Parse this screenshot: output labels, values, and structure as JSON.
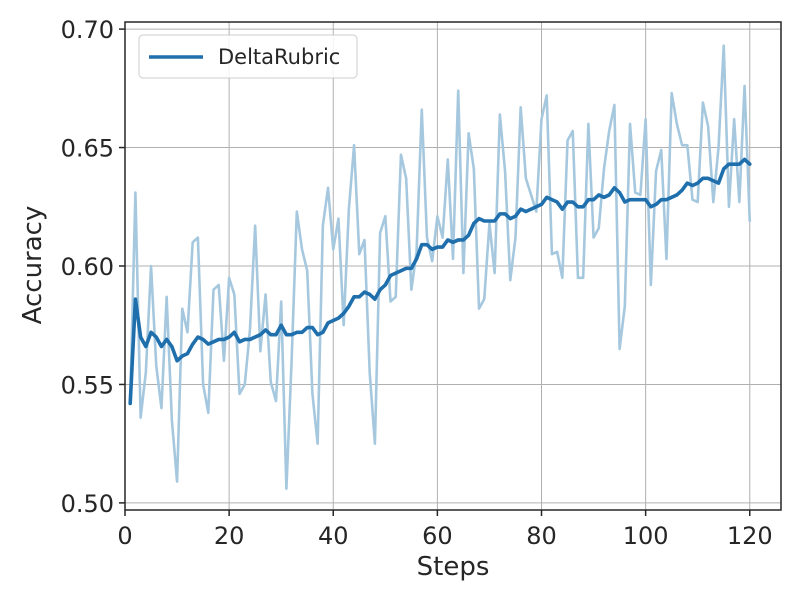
{
  "chart_data": {
    "type": "line",
    "xlabel": "Steps",
    "ylabel": "Accuracy",
    "xlim": [
      0,
      126
    ],
    "ylim": [
      0.497,
      0.703
    ],
    "xticks": [
      0,
      20,
      40,
      60,
      80,
      100,
      120
    ],
    "yticks": [
      0.5,
      0.55,
      0.6,
      0.65,
      0.7
    ],
    "ytick_labels": [
      "0.50",
      "0.55",
      "0.60",
      "0.65",
      "0.70"
    ],
    "grid": true,
    "legend": {
      "placement": "top-left",
      "entries": [
        "DeltaRubric"
      ]
    },
    "x": [
      1,
      2,
      3,
      4,
      5,
      6,
      7,
      8,
      9,
      10,
      11,
      12,
      13,
      14,
      15,
      16,
      17,
      18,
      19,
      20,
      21,
      22,
      23,
      24,
      25,
      26,
      27,
      28,
      29,
      30,
      31,
      32,
      33,
      34,
      35,
      36,
      37,
      38,
      39,
      40,
      41,
      42,
      43,
      44,
      45,
      46,
      47,
      48,
      49,
      50,
      51,
      52,
      53,
      54,
      55,
      56,
      57,
      58,
      59,
      60,
      61,
      62,
      63,
      64,
      65,
      66,
      67,
      68,
      69,
      70,
      71,
      72,
      73,
      74,
      75,
      76,
      77,
      78,
      79,
      80,
      81,
      82,
      83,
      84,
      85,
      86,
      87,
      88,
      89,
      90,
      91,
      92,
      93,
      94,
      95,
      96,
      97,
      98,
      99,
      100,
      101,
      102,
      103,
      104,
      105,
      106,
      107,
      108,
      109,
      110,
      111,
      112,
      113,
      114,
      115,
      116,
      117,
      118,
      119,
      120
    ],
    "series": [
      {
        "role": "raw",
        "color": "#a6c8df",
        "values": [
          0.542,
          0.631,
          0.536,
          0.555,
          0.6,
          0.558,
          0.54,
          0.587,
          0.535,
          0.509,
          0.582,
          0.572,
          0.61,
          0.612,
          0.55,
          0.538,
          0.59,
          0.592,
          0.56,
          0.595,
          0.588,
          0.546,
          0.55,
          0.573,
          0.617,
          0.564,
          0.588,
          0.551,
          0.543,
          0.585,
          0.506,
          0.56,
          0.623,
          0.607,
          0.598,
          0.546,
          0.525,
          0.617,
          0.633,
          0.607,
          0.62,
          0.575,
          0.624,
          0.651,
          0.605,
          0.611,
          0.555,
          0.525,
          0.614,
          0.621,
          0.585,
          0.587,
          0.647,
          0.637,
          0.59,
          0.606,
          0.666,
          0.612,
          0.602,
          0.621,
          0.612,
          0.645,
          0.603,
          0.674,
          0.597,
          0.656,
          0.641,
          0.582,
          0.586,
          0.618,
          0.597,
          0.664,
          0.64,
          0.594,
          0.612,
          0.667,
          0.637,
          0.63,
          0.623,
          0.662,
          0.672,
          0.605,
          0.606,
          0.595,
          0.653,
          0.657,
          0.595,
          0.595,
          0.66,
          0.612,
          0.616,
          0.641,
          0.657,
          0.668,
          0.565,
          0.583,
          0.66,
          0.631,
          0.63,
          0.662,
          0.592,
          0.64,
          0.649,
          0.603,
          0.673,
          0.66,
          0.651,
          0.651,
          0.628,
          0.627,
          0.669,
          0.659,
          0.627,
          0.65,
          0.693,
          0.625,
          0.662,
          0.627,
          0.676,
          0.619
        ]
      },
      {
        "name": "DeltaRubric",
        "role": "smoothed",
        "color": "#1f6fad",
        "values": [
          0.542,
          0.586,
          0.57,
          0.566,
          0.572,
          0.57,
          0.566,
          0.569,
          0.566,
          0.56,
          0.562,
          0.563,
          0.567,
          0.57,
          0.569,
          0.567,
          0.568,
          0.569,
          0.569,
          0.57,
          0.572,
          0.568,
          0.569,
          0.569,
          0.57,
          0.571,
          0.573,
          0.571,
          0.571,
          0.575,
          0.571,
          0.571,
          0.572,
          0.572,
          0.574,
          0.574,
          0.571,
          0.572,
          0.576,
          0.577,
          0.578,
          0.58,
          0.583,
          0.587,
          0.587,
          0.589,
          0.588,
          0.586,
          0.59,
          0.592,
          0.596,
          0.597,
          0.598,
          0.599,
          0.599,
          0.603,
          0.609,
          0.609,
          0.607,
          0.608,
          0.608,
          0.611,
          0.61,
          0.611,
          0.611,
          0.613,
          0.618,
          0.62,
          0.619,
          0.619,
          0.619,
          0.622,
          0.622,
          0.62,
          0.621,
          0.624,
          0.623,
          0.624,
          0.625,
          0.626,
          0.629,
          0.628,
          0.627,
          0.624,
          0.627,
          0.627,
          0.625,
          0.625,
          0.628,
          0.628,
          0.63,
          0.629,
          0.63,
          0.633,
          0.631,
          0.627,
          0.628,
          0.628,
          0.628,
          0.628,
          0.625,
          0.626,
          0.628,
          0.628,
          0.629,
          0.63,
          0.632,
          0.635,
          0.634,
          0.635,
          0.637,
          0.637,
          0.636,
          0.635,
          0.641,
          0.643,
          0.643,
          0.643,
          0.645,
          0.643
        ]
      }
    ]
  }
}
